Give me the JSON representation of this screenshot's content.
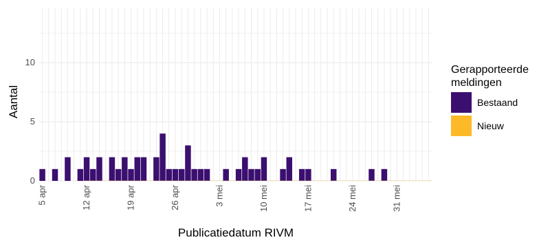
{
  "chart_data": {
    "type": "bar",
    "stacked": true,
    "xlabel": "Publicatiedatum RIVM",
    "ylabel": "Aantal",
    "x_tick_labels": [
      "5 apr",
      "12 apr",
      "19 apr",
      "26 apr",
      "3 mei",
      "10 mei",
      "17 mei",
      "24 mei",
      "31 mei"
    ],
    "ylim": [
      0,
      14.6
    ],
    "y_ticks": [
      0,
      5,
      10
    ],
    "grid": true,
    "legend_position": "right",
    "legend_title": "Gerapporteerde meldingen",
    "colors": {
      "Bestaand": "#3b0f6f",
      "Nieuw": "#fdb927"
    },
    "x": [
      "2020-04-05",
      "2020-04-06",
      "2020-04-07",
      "2020-04-08",
      "2020-04-09",
      "2020-04-10",
      "2020-04-11",
      "2020-04-12",
      "2020-04-13",
      "2020-04-14",
      "2020-04-15",
      "2020-04-16",
      "2020-04-17",
      "2020-04-18",
      "2020-04-19",
      "2020-04-20",
      "2020-04-21",
      "2020-04-22",
      "2020-04-23",
      "2020-04-24",
      "2020-04-25",
      "2020-04-26",
      "2020-04-27",
      "2020-04-28",
      "2020-04-29",
      "2020-04-30",
      "2020-05-01",
      "2020-05-02",
      "2020-05-03",
      "2020-05-04",
      "2020-05-05",
      "2020-05-06",
      "2020-05-07",
      "2020-05-08",
      "2020-05-09",
      "2020-05-10",
      "2020-05-11",
      "2020-05-12",
      "2020-05-13",
      "2020-05-14",
      "2020-05-15",
      "2020-05-16",
      "2020-05-17",
      "2020-05-18",
      "2020-05-19",
      "2020-05-20",
      "2020-05-21",
      "2020-05-22",
      "2020-05-23",
      "2020-05-24",
      "2020-05-25",
      "2020-05-26",
      "2020-05-27",
      "2020-05-28",
      "2020-05-29",
      "2020-05-30",
      "2020-05-31",
      "2020-06-01",
      "2020-06-02",
      "2020-06-03",
      "2020-06-04",
      "2020-06-05"
    ],
    "series": [
      {
        "name": "Bestaand",
        "values": [
          1,
          0,
          1,
          0,
          2,
          0,
          1,
          2,
          1,
          2,
          0,
          2,
          1,
          2,
          1,
          2,
          2,
          0,
          2,
          4,
          1,
          1,
          1,
          3,
          1,
          1,
          1,
          0,
          0,
          1,
          0,
          1,
          2,
          1,
          1,
          2,
          0,
          0,
          1,
          2,
          0,
          1,
          1,
          0,
          0,
          0,
          1,
          0,
          0,
          0,
          0,
          0,
          1,
          0,
          1,
          0,
          0,
          0,
          0,
          0,
          0,
          0
        ]
      },
      {
        "name": "Nieuw",
        "values": [
          0,
          0,
          0,
          0,
          0,
          0,
          0,
          0,
          0,
          0,
          0,
          0,
          0,
          0,
          0,
          0,
          0,
          0,
          0,
          0,
          0,
          0,
          0,
          0,
          0,
          0,
          0,
          0,
          0,
          0,
          0,
          0,
          0,
          0,
          0,
          0,
          0,
          0,
          0,
          0,
          0,
          0,
          0,
          0,
          0,
          0,
          0,
          0,
          0,
          0,
          0,
          0,
          0,
          0,
          0,
          0,
          0,
          0,
          0,
          0,
          0,
          0
        ]
      }
    ]
  }
}
